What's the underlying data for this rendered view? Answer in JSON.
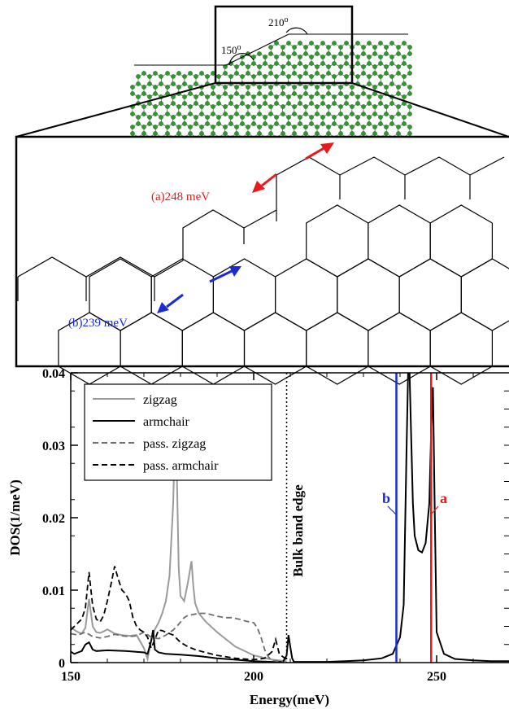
{
  "top_inset": {
    "angle_1": "150",
    "angle_2": "210",
    "degree_symbol": "o"
  },
  "middle_panel": {
    "label_a": "(a)248 meV",
    "label_b": "(b)239 meV",
    "color_a": "#e8191c",
    "color_b": "#1a2bd4"
  },
  "chart_data": {
    "type": "line",
    "xlabel": "Energy(meV)",
    "ylabel": "DOS(1/meV)",
    "xlim": [
      150,
      270
    ],
    "ylim": [
      0,
      0.04
    ],
    "x_ticks": [
      "150",
      "200",
      "250"
    ],
    "y_ticks": [
      "0",
      "0.01",
      "0.02",
      "0.03",
      "0.04"
    ],
    "legend": {
      "position": "top-left",
      "entries": [
        "zigzag",
        "armchair",
        "pass. zigzag",
        "pass. armchair"
      ]
    },
    "annotations": {
      "band_edge_label": "Bulk band edge",
      "band_edge_x": 209,
      "line_b_label": "b",
      "line_b_x": 239,
      "line_a_label": "a",
      "line_a_x": 248.5
    },
    "series": [
      {
        "name": "zigzag",
        "color": "#9a9a9a",
        "dash": "solid",
        "x": [
          150,
          151,
          152,
          153,
          154,
          155,
          156,
          157,
          158,
          159,
          160,
          162,
          164,
          166,
          168,
          170,
          171,
          172,
          173,
          174,
          175,
          176,
          177,
          178,
          178.5,
          179,
          179.5,
          180,
          181,
          182,
          183,
          183.5,
          184,
          185,
          187,
          190,
          195,
          200,
          205,
          209
        ],
        "y": [
          0.005,
          0.0045,
          0.0042,
          0.004,
          0.0048,
          0.0088,
          0.005,
          0.0042,
          0.0041,
          0.0043,
          0.0046,
          0.004,
          0.0038,
          0.0037,
          0.0038,
          0.002,
          0.0005,
          0.0032,
          0.0046,
          0.0055,
          0.0068,
          0.0085,
          0.012,
          0.022,
          0.032,
          0.026,
          0.013,
          0.0092,
          0.0085,
          0.011,
          0.014,
          0.0105,
          0.0082,
          0.0068,
          0.0056,
          0.0042,
          0.0022,
          0.001,
          0.0004,
          0.0002
        ]
      },
      {
        "name": "armchair",
        "color": "#000000",
        "dash": "solid",
        "x": [
          150,
          151,
          152,
          153,
          154,
          155,
          156,
          157,
          160,
          165,
          170,
          171,
          172,
          172.5,
          173,
          174,
          176,
          180,
          185,
          190,
          195,
          200,
          205,
          208,
          209,
          209.5,
          210,
          210.5,
          211,
          215,
          220,
          225,
          230,
          235,
          238,
          240,
          241,
          241.8,
          242.2,
          242.6,
          243,
          243.5,
          244,
          245,
          246,
          247,
          248,
          248.5,
          249,
          249.5,
          250,
          252,
          255,
          260,
          265,
          270
        ],
        "y": [
          0.0015,
          0.0012,
          0.0014,
          0.0016,
          0.0025,
          0.0028,
          0.0018,
          0.0016,
          0.0017,
          0.0016,
          0.0014,
          0.0012,
          0.003,
          0.0045,
          0.0018,
          0.0014,
          0.0012,
          0.0011,
          0.0009,
          0.0006,
          0.0004,
          0.0002,
          0.0001,
          0.0001,
          0.001,
          0.0038,
          0.0022,
          0.0006,
          0.0001,
          0.0001,
          0.0001,
          0.0002,
          0.0003,
          0.0006,
          0.0012,
          0.0035,
          0.008,
          0.03,
          0.04,
          0.04,
          0.032,
          0.022,
          0.0175,
          0.0155,
          0.0152,
          0.0165,
          0.022,
          0.032,
          0.038,
          0.02,
          0.0042,
          0.0012,
          0.0005,
          0.0003,
          0.0002,
          0.0002
        ]
      },
      {
        "name": "pass. zigzag",
        "color": "#6e6e6e",
        "dash": "dashed",
        "x": [
          150,
          152,
          154,
          156,
          158,
          160,
          162,
          164,
          166,
          168,
          170,
          172,
          174,
          176,
          178,
          179,
          180,
          181,
          182,
          183,
          185,
          187,
          190,
          192,
          194,
          196,
          198,
          200,
          201,
          202,
          203,
          204,
          205,
          208
        ],
        "y": [
          0.004,
          0.0038,
          0.0042,
          0.0036,
          0.0034,
          0.0036,
          0.0039,
          0.0037,
          0.0036,
          0.0037,
          0.0042,
          0.0035,
          0.0033,
          0.0038,
          0.0045,
          0.005,
          0.0056,
          0.0062,
          0.0065,
          0.0066,
          0.0068,
          0.0068,
          0.0064,
          0.0062,
          0.0062,
          0.006,
          0.0057,
          0.0055,
          0.0048,
          0.0035,
          0.0018,
          0.0008,
          0.0003,
          0.0001
        ]
      },
      {
        "name": "pass. armchair",
        "color": "#000000",
        "dash": "dashed",
        "x": [
          150,
          151,
          152,
          153,
          154,
          155,
          156,
          157,
          158,
          159,
          160,
          161,
          162,
          163,
          164,
          165,
          166,
          167,
          168,
          169,
          170,
          171,
          172,
          173,
          174,
          175,
          176,
          178,
          180,
          182,
          184,
          186,
          190,
          195,
          200,
          203,
          205,
          206,
          207,
          209
        ],
        "y": [
          0.0045,
          0.005,
          0.0055,
          0.006,
          0.0075,
          0.0125,
          0.0078,
          0.006,
          0.0056,
          0.0065,
          0.0085,
          0.0108,
          0.0133,
          0.0115,
          0.01,
          0.0095,
          0.0085,
          0.0062,
          0.005,
          0.0045,
          0.0042,
          0.0035,
          0.002,
          0.0032,
          0.0045,
          0.0044,
          0.0042,
          0.0038,
          0.0028,
          0.0022,
          0.0018,
          0.0015,
          0.001,
          0.0006,
          0.0004,
          0.0006,
          0.0015,
          0.0032,
          0.0012,
          0.0004
        ]
      }
    ]
  }
}
